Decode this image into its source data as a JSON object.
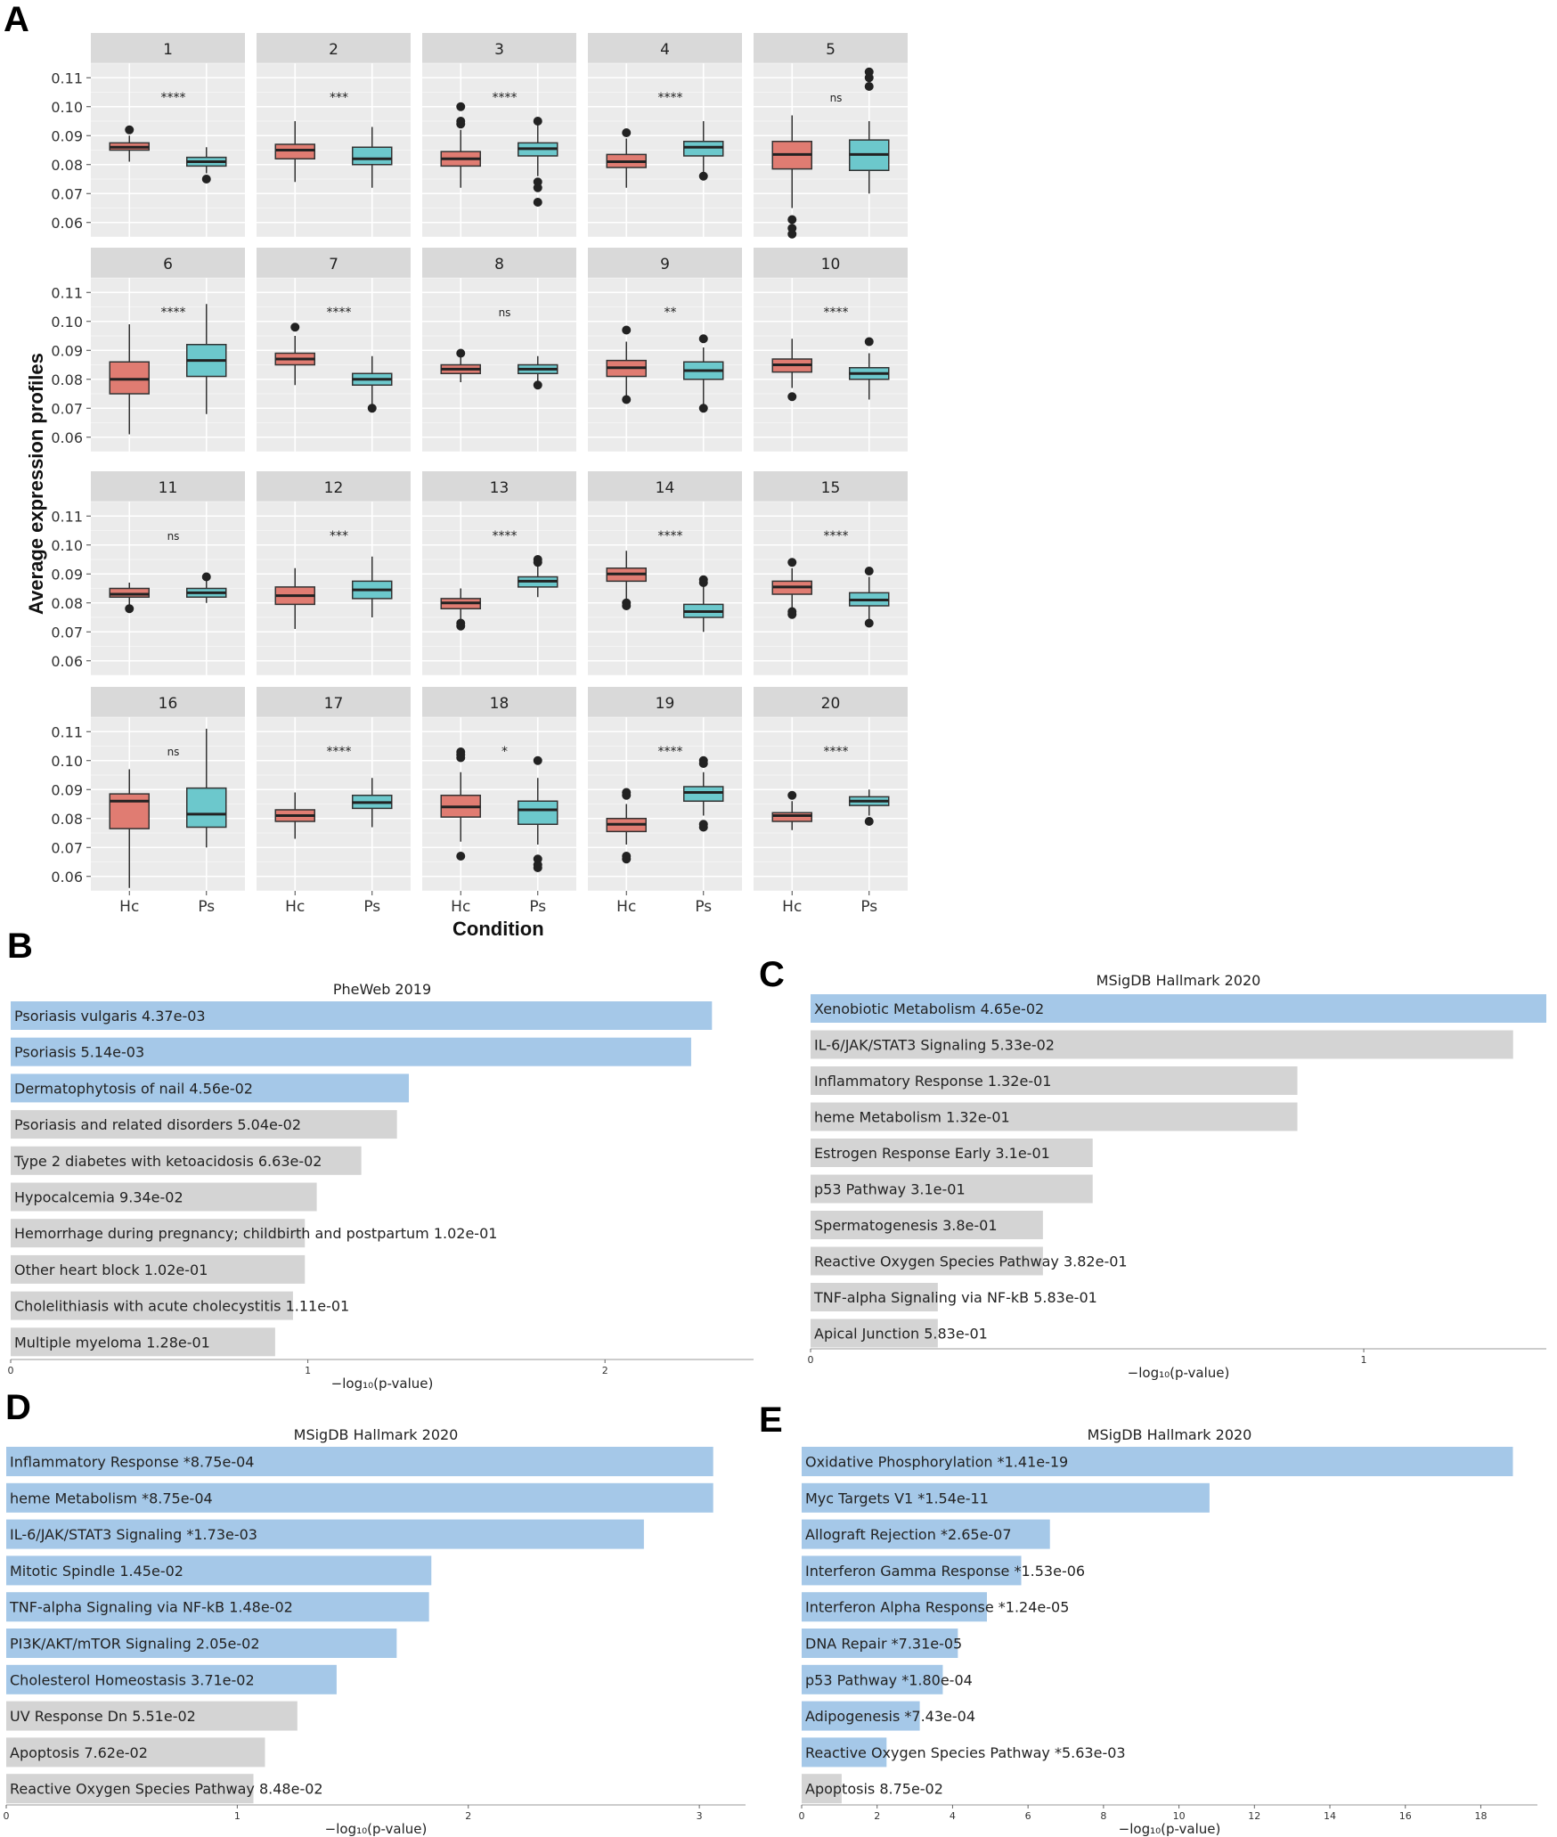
{
  "panels": {
    "A": "A",
    "B": "B",
    "C": "C",
    "D": "D",
    "E": "E"
  },
  "panel_a": {
    "ylabel": "Average expression profiles",
    "xlabel": "Condition",
    "yticks": [
      "0.06",
      "0.07",
      "0.08",
      "0.09",
      "0.10",
      "0.11"
    ],
    "xticks": [
      "Hc",
      "Ps"
    ]
  },
  "colors": {
    "hc": "#E07C72",
    "ps": "#6CC8CC",
    "facet_bg": "#EBEBEB",
    "strip_bg": "#D9D9D9",
    "grid": "#FFFFFF",
    "bar_sig": "#A5C8E8",
    "bar_nonsig": "#D4D4D4"
  },
  "chart_data": [
    {
      "type": "boxplot",
      "panel": "A",
      "ylabel": "Average expression profiles",
      "xlabel": "Condition",
      "ylim": [
        0.055,
        0.115
      ],
      "groups": [
        "Hc",
        "Ps"
      ],
      "facets": [
        {
          "label": "1",
          "sig": "****",
          "hc": {
            "min": 0.081,
            "q1": 0.085,
            "med": 0.086,
            "q3": 0.0875,
            "max": 0.09,
            "out": [
              0.092
            ]
          },
          "ps": {
            "min": 0.077,
            "q1": 0.0795,
            "med": 0.081,
            "q3": 0.0825,
            "max": 0.086,
            "out": [
              0.075
            ]
          }
        },
        {
          "label": "2",
          "sig": "***",
          "hc": {
            "min": 0.074,
            "q1": 0.082,
            "med": 0.085,
            "q3": 0.087,
            "max": 0.095,
            "out": []
          },
          "ps": {
            "min": 0.072,
            "q1": 0.08,
            "med": 0.082,
            "q3": 0.086,
            "max": 0.093,
            "out": []
          }
        },
        {
          "label": "3",
          "sig": "****",
          "hc": {
            "min": 0.072,
            "q1": 0.0795,
            "med": 0.082,
            "q3": 0.0845,
            "max": 0.092,
            "out": [
              0.1,
              0.095,
              0.094
            ]
          },
          "ps": {
            "min": 0.076,
            "q1": 0.083,
            "med": 0.0855,
            "q3": 0.0875,
            "max": 0.094,
            "out": [
              0.095,
              0.074,
              0.072,
              0.067
            ]
          }
        },
        {
          "label": "4",
          "sig": "****",
          "hc": {
            "min": 0.072,
            "q1": 0.079,
            "med": 0.081,
            "q3": 0.0835,
            "max": 0.089,
            "out": [
              0.091
            ]
          },
          "ps": {
            "min": 0.077,
            "q1": 0.083,
            "med": 0.086,
            "q3": 0.088,
            "max": 0.095,
            "out": [
              0.076
            ]
          }
        },
        {
          "label": "5",
          "sig": "ns",
          "hc": {
            "min": 0.065,
            "q1": 0.0785,
            "med": 0.0835,
            "q3": 0.088,
            "max": 0.097,
            "out": [
              0.061,
              0.058,
              0.056
            ]
          },
          "ps": {
            "min": 0.07,
            "q1": 0.078,
            "med": 0.0835,
            "q3": 0.0885,
            "max": 0.095,
            "out": [
              0.112,
              0.11,
              0.107
            ]
          }
        },
        {
          "label": "6",
          "sig": "****",
          "hc": {
            "min": 0.061,
            "q1": 0.075,
            "med": 0.08,
            "q3": 0.086,
            "max": 0.099,
            "out": []
          },
          "ps": {
            "min": 0.068,
            "q1": 0.081,
            "med": 0.0865,
            "q3": 0.092,
            "max": 0.106,
            "out": []
          }
        },
        {
          "label": "7",
          "sig": "****",
          "hc": {
            "min": 0.078,
            "q1": 0.085,
            "med": 0.087,
            "q3": 0.089,
            "max": 0.095,
            "out": [
              0.098
            ]
          },
          "ps": {
            "min": 0.071,
            "q1": 0.078,
            "med": 0.08,
            "q3": 0.082,
            "max": 0.088,
            "out": [
              0.07
            ]
          }
        },
        {
          "label": "8",
          "sig": "ns",
          "hc": {
            "min": 0.079,
            "q1": 0.082,
            "med": 0.0835,
            "q3": 0.085,
            "max": 0.088,
            "out": [
              0.089
            ]
          },
          "ps": {
            "min": 0.079,
            "q1": 0.082,
            "med": 0.0835,
            "q3": 0.085,
            "max": 0.088,
            "out": [
              0.078
            ]
          }
        },
        {
          "label": "9",
          "sig": "**",
          "hc": {
            "min": 0.074,
            "q1": 0.081,
            "med": 0.084,
            "q3": 0.0865,
            "max": 0.093,
            "out": [
              0.097,
              0.073
            ]
          },
          "ps": {
            "min": 0.071,
            "q1": 0.08,
            "med": 0.083,
            "q3": 0.086,
            "max": 0.091,
            "out": [
              0.094,
              0.07
            ]
          }
        },
        {
          "label": "10",
          "sig": "****",
          "hc": {
            "min": 0.077,
            "q1": 0.0825,
            "med": 0.085,
            "q3": 0.087,
            "max": 0.094,
            "out": [
              0.074
            ]
          },
          "ps": {
            "min": 0.073,
            "q1": 0.08,
            "med": 0.082,
            "q3": 0.084,
            "max": 0.089,
            "out": [
              0.093
            ]
          }
        },
        {
          "label": "11",
          "sig": "ns",
          "hc": {
            "min": 0.079,
            "q1": 0.082,
            "med": 0.083,
            "q3": 0.085,
            "max": 0.087,
            "out": [
              0.078
            ]
          },
          "ps": {
            "min": 0.08,
            "q1": 0.082,
            "med": 0.0835,
            "q3": 0.085,
            "max": 0.088,
            "out": [
              0.089
            ]
          }
        },
        {
          "label": "12",
          "sig": "***",
          "hc": {
            "min": 0.071,
            "q1": 0.0795,
            "med": 0.0825,
            "q3": 0.0855,
            "max": 0.092,
            "out": []
          },
          "ps": {
            "min": 0.075,
            "q1": 0.0815,
            "med": 0.0845,
            "q3": 0.0875,
            "max": 0.096,
            "out": []
          }
        },
        {
          "label": "13",
          "sig": "****",
          "hc": {
            "min": 0.074,
            "q1": 0.078,
            "med": 0.08,
            "q3": 0.0815,
            "max": 0.085,
            "out": [
              0.073,
              0.072
            ]
          },
          "ps": {
            "min": 0.082,
            "q1": 0.0855,
            "med": 0.0875,
            "q3": 0.089,
            "max": 0.093,
            "out": [
              0.095,
              0.094
            ]
          }
        },
        {
          "label": "14",
          "sig": "****",
          "hc": {
            "min": 0.08,
            "q1": 0.0875,
            "med": 0.09,
            "q3": 0.092,
            "max": 0.098,
            "out": [
              0.08,
              0.079
            ]
          },
          "ps": {
            "min": 0.07,
            "q1": 0.075,
            "med": 0.077,
            "q3": 0.0795,
            "max": 0.086,
            "out": [
              0.088,
              0.087
            ]
          }
        },
        {
          "label": "15",
          "sig": "****",
          "hc": {
            "min": 0.078,
            "q1": 0.083,
            "med": 0.0855,
            "q3": 0.0875,
            "max": 0.092,
            "out": [
              0.094,
              0.077,
              0.076
            ]
          },
          "ps": {
            "min": 0.074,
            "q1": 0.079,
            "med": 0.081,
            "q3": 0.0835,
            "max": 0.089,
            "out": [
              0.091,
              0.073
            ]
          }
        },
        {
          "label": "16",
          "sig": "ns",
          "hc": {
            "min": 0.056,
            "q1": 0.0765,
            "med": 0.086,
            "q3": 0.0885,
            "max": 0.097,
            "out": []
          },
          "ps": {
            "min": 0.07,
            "q1": 0.077,
            "med": 0.0815,
            "q3": 0.0905,
            "max": 0.111,
            "out": []
          }
        },
        {
          "label": "17",
          "sig": "****",
          "hc": {
            "min": 0.073,
            "q1": 0.079,
            "med": 0.081,
            "q3": 0.083,
            "max": 0.089,
            "out": []
          },
          "ps": {
            "min": 0.077,
            "q1": 0.0835,
            "med": 0.0855,
            "q3": 0.088,
            "max": 0.094,
            "out": []
          }
        },
        {
          "label": "18",
          "sig": "*",
          "hc": {
            "min": 0.072,
            "q1": 0.0805,
            "med": 0.084,
            "q3": 0.088,
            "max": 0.096,
            "out": [
              0.103,
              0.102,
              0.101,
              0.067
            ]
          },
          "ps": {
            "min": 0.071,
            "q1": 0.078,
            "med": 0.083,
            "q3": 0.086,
            "max": 0.094,
            "out": [
              0.1,
              0.066,
              0.064,
              0.063
            ]
          }
        },
        {
          "label": "19",
          "sig": "****",
          "hc": {
            "min": 0.071,
            "q1": 0.0755,
            "med": 0.078,
            "q3": 0.08,
            "max": 0.085,
            "out": [
              0.089,
              0.088,
              0.067,
              0.066
            ]
          },
          "ps": {
            "min": 0.081,
            "q1": 0.086,
            "med": 0.089,
            "q3": 0.091,
            "max": 0.096,
            "out": [
              0.1,
              0.099,
              0.078,
              0.077
            ]
          }
        },
        {
          "label": "20",
          "sig": "****",
          "hc": {
            "min": 0.076,
            "q1": 0.079,
            "med": 0.081,
            "q3": 0.082,
            "max": 0.086,
            "out": [
              0.088
            ]
          },
          "ps": {
            "min": 0.081,
            "q1": 0.0845,
            "med": 0.086,
            "q3": 0.0875,
            "max": 0.09,
            "out": [
              0.079
            ]
          }
        }
      ]
    },
    {
      "type": "bar",
      "panel": "B",
      "title": "PheWeb 2019",
      "xlabel": "−log₁₀(p-value)",
      "xlim": [
        0,
        2.5
      ],
      "xticks": [
        0,
        1,
        2
      ],
      "bars": [
        {
          "label": "Psoriasis vulgaris  4.37e-03",
          "value": 2.36,
          "sig": true
        },
        {
          "label": "Psoriasis  5.14e-03",
          "value": 2.29,
          "sig": true
        },
        {
          "label": "Dermatophytosis of nail  4.56e-02",
          "value": 1.34,
          "sig": true
        },
        {
          "label": "Psoriasis and related disorders  5.04e-02",
          "value": 1.3,
          "sig": false
        },
        {
          "label": "Type 2 diabetes with ketoacidosis  6.63e-02",
          "value": 1.18,
          "sig": false
        },
        {
          "label": "Hypocalcemia  9.34e-02",
          "value": 1.03,
          "sig": false
        },
        {
          "label": "Hemorrhage during pregnancy; childbirth and postpartum  1.02e-01",
          "value": 0.99,
          "sig": false
        },
        {
          "label": "Other heart block  1.02e-01",
          "value": 0.99,
          "sig": false
        },
        {
          "label": "Cholelithiasis with acute cholecystitis  1.11e-01",
          "value": 0.95,
          "sig": false
        },
        {
          "label": "Multiple myeloma  1.28e-01",
          "value": 0.89,
          "sig": false
        }
      ]
    },
    {
      "type": "bar",
      "panel": "C",
      "title": "MSigDB Hallmark 2020",
      "xlabel": "−log₁₀(p-value)",
      "xlim": [
        0,
        1.33
      ],
      "xticks": [
        0,
        1
      ],
      "bars": [
        {
          "label": "Xenobiotic Metabolism  4.65e-02",
          "value": 1.33,
          "sig": true
        },
        {
          "label": "IL-6/JAK/STAT3 Signaling  5.33e-02",
          "value": 1.27,
          "sig": false
        },
        {
          "label": "Inflammatory Response  1.32e-01",
          "value": 0.88,
          "sig": false
        },
        {
          "label": "heme Metabolism  1.32e-01",
          "value": 0.88,
          "sig": false
        },
        {
          "label": "Estrogen Response Early  3.1e-01",
          "value": 0.51,
          "sig": false
        },
        {
          "label": "p53 Pathway  3.1e-01",
          "value": 0.51,
          "sig": false
        },
        {
          "label": "Spermatogenesis  3.8e-01",
          "value": 0.42,
          "sig": false
        },
        {
          "label": "Reactive Oxygen Species Pathway  3.82e-01",
          "value": 0.42,
          "sig": false
        },
        {
          "label": "TNF-alpha Signaling via NF-kB  5.83e-01",
          "value": 0.23,
          "sig": false
        },
        {
          "label": "Apical Junction  5.83e-01",
          "value": 0.23,
          "sig": false
        }
      ]
    },
    {
      "type": "bar",
      "panel": "D",
      "title": "MSigDB Hallmark 2020",
      "xlabel": "−log₁₀(p-value)",
      "xlim": [
        0,
        3.2
      ],
      "xticks": [
        0,
        1,
        2,
        3
      ],
      "bars": [
        {
          "label": "Inflammatory Response  *8.75e-04",
          "value": 3.06,
          "sig": true
        },
        {
          "label": "heme Metabolism  *8.75e-04",
          "value": 3.06,
          "sig": true
        },
        {
          "label": "IL-6/JAK/STAT3 Signaling  *1.73e-03",
          "value": 2.76,
          "sig": true
        },
        {
          "label": "Mitotic Spindle  1.45e-02",
          "value": 1.84,
          "sig": true
        },
        {
          "label": "TNF-alpha Signaling via NF-kB  1.48e-02",
          "value": 1.83,
          "sig": true
        },
        {
          "label": "PI3K/AKT/mTOR  Signaling  2.05e-02",
          "value": 1.69,
          "sig": true
        },
        {
          "label": "Cholesterol Homeostasis  3.71e-02",
          "value": 1.43,
          "sig": true
        },
        {
          "label": "UV Response Dn  5.51e-02",
          "value": 1.26,
          "sig": false
        },
        {
          "label": "Apoptosis  7.62e-02",
          "value": 1.12,
          "sig": false
        },
        {
          "label": "Reactive Oxygen Species Pathway  8.48e-02",
          "value": 1.07,
          "sig": false
        }
      ]
    },
    {
      "type": "bar",
      "panel": "E",
      "title": "MSigDB Hallmark 2020",
      "xlabel": "−log₁₀(p-value)",
      "xlim": [
        0,
        19.5
      ],
      "xticks": [
        0,
        2,
        4,
        6,
        8,
        10,
        12,
        14,
        16,
        18
      ],
      "bars": [
        {
          "label": "Oxidative Phosphorylation  *1.41e-19",
          "value": 18.85,
          "sig": true
        },
        {
          "label": "Myc Targets V1  *1.54e-11",
          "value": 10.81,
          "sig": true
        },
        {
          "label": "Allograft Rejection  *2.65e-07",
          "value": 6.58,
          "sig": true
        },
        {
          "label": "Interferon Gamma Response  *1.53e-06",
          "value": 5.82,
          "sig": true
        },
        {
          "label": "Interferon Alpha Response  *1.24e-05",
          "value": 4.91,
          "sig": true
        },
        {
          "label": "DNA Repair  *7.31e-05",
          "value": 4.14,
          "sig": true
        },
        {
          "label": "p53 Pathway  *1.80e-04",
          "value": 3.74,
          "sig": true
        },
        {
          "label": "Adipogenesis  *7.43e-04",
          "value": 3.13,
          "sig": true
        },
        {
          "label": "Reactive Oxygen Species Pathway  *5.63e-03",
          "value": 2.25,
          "sig": true
        },
        {
          "label": "Apoptosis  8.75e-02",
          "value": 1.06,
          "sig": false
        }
      ]
    }
  ]
}
